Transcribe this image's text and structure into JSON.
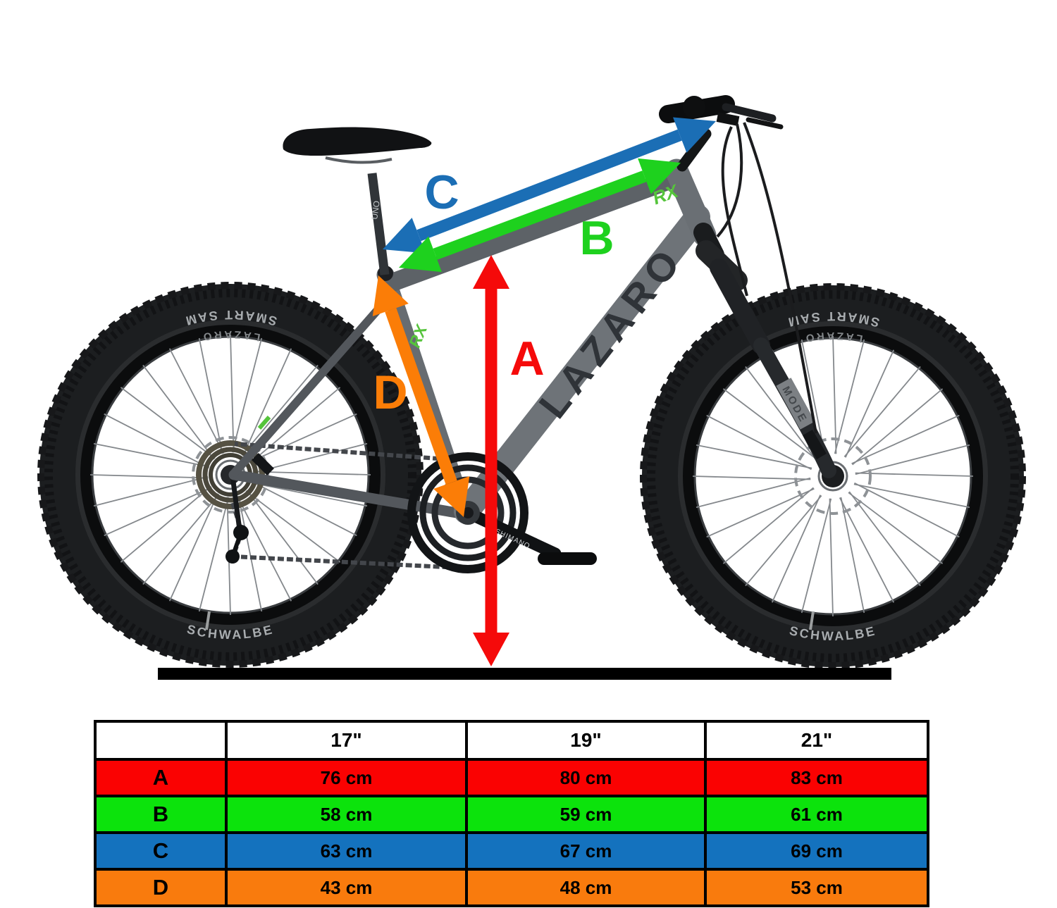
{
  "theme": {
    "arrow_red": "#f50a0a",
    "arrow_green": "#1ed11e",
    "arrow_blue": "#1b6eb5",
    "arrow_orange": "#fb7d07",
    "table_red": "#fa0202",
    "table_green": "#0ce30c",
    "table_blue": "#1472be",
    "table_orange": "#f97b0d",
    "frame_gray": "#6e7378",
    "ground_black": "#000000"
  },
  "dimension_labels": {
    "a": "A",
    "b": "B",
    "c": "C",
    "d": "D"
  },
  "bike_decals": {
    "frame_brand": "LAZARO",
    "model_logo": "RX",
    "fork_model": "MODE",
    "seatpost_brand": "UNO",
    "crank_brand": "SHIMANO",
    "tire_model": "SMART SAM",
    "tire_brand": "SCHWALBE",
    "rim_brand": "LAZARO"
  },
  "table": {
    "size_headers": [
      "17\"",
      "19\"",
      "21\""
    ],
    "rows": [
      {
        "label": "A",
        "values": [
          "76 cm",
          "80 cm",
          "83 cm"
        ]
      },
      {
        "label": "B",
        "values": [
          "58 cm",
          "59 cm",
          "61 cm"
        ]
      },
      {
        "label": "C",
        "values": [
          "63 cm",
          "67 cm",
          "69 cm"
        ]
      },
      {
        "label": "D",
        "values": [
          "43 cm",
          "48 cm",
          "53 cm"
        ]
      }
    ]
  }
}
